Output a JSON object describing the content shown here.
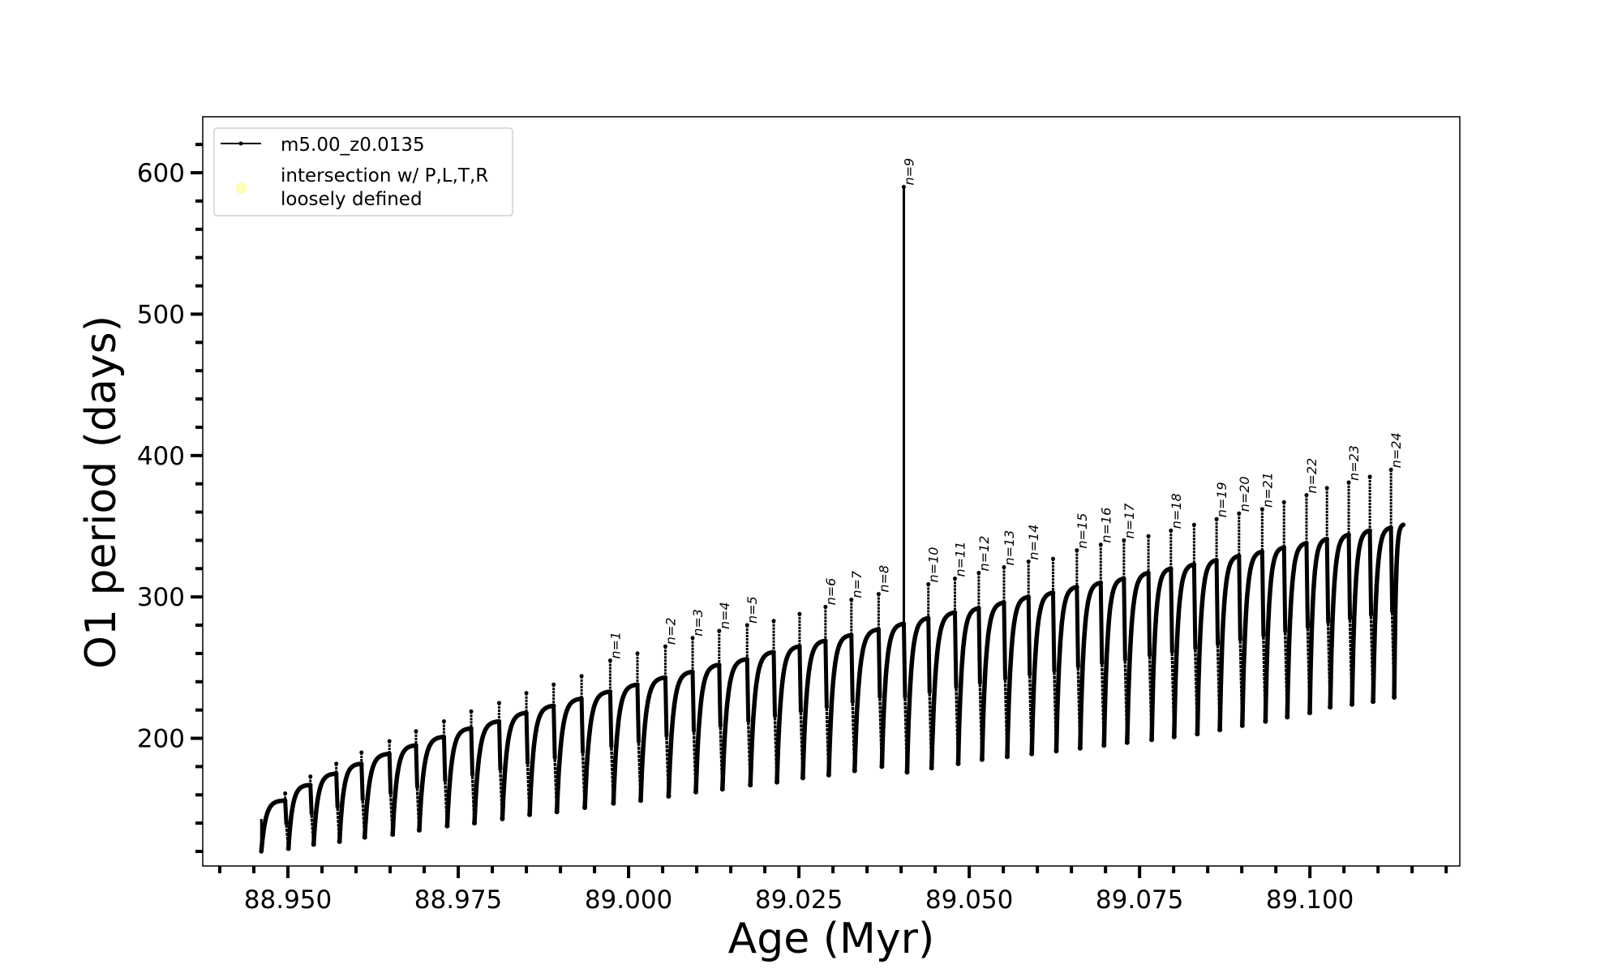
{
  "chart_data": {
    "type": "line",
    "title": "",
    "xlabel": "Age (Myr)",
    "ylabel": "O1 period (days)",
    "xlim": [
      88.9375,
      89.122
    ],
    "ylim": [
      109.7,
      639.6
    ],
    "xticks": [
      "88.950",
      "88.975",
      "89.000",
      "89.025",
      "89.050",
      "89.075",
      "89.100"
    ],
    "xtick_values": [
      88.95,
      88.975,
      89.0,
      89.025,
      89.05,
      89.075,
      89.1
    ],
    "xminor_step": 0.005,
    "yticks": [
      "200",
      "300",
      "400",
      "500",
      "600"
    ],
    "ytick_values": [
      200,
      300,
      400,
      500,
      600
    ],
    "yminor_step": 20,
    "grid": false,
    "legend": {
      "placement": "top-left",
      "entries": [
        {
          "label": "m5.00_z0.0135",
          "color": "#000000",
          "marker": "line-dot"
        },
        {
          "label_line1": "intersection w/ P,L,T,R",
          "label_line2": "loosely defined",
          "color": "#fdfdb8",
          "marker": "circle"
        }
      ]
    },
    "series_color": "#000000",
    "start": {
      "t": 88.9461,
      "P_first": 143,
      "P_min": 120
    },
    "end": {
      "t": 89.1137,
      "P": 351
    },
    "cycles": [
      {
        "t": 88.9496,
        "peak": 156,
        "spike": 161,
        "next_min": 122,
        "label": ""
      },
      {
        "t": 88.9533,
        "peak": 167,
        "spike": 173,
        "next_min": 125,
        "label": ""
      },
      {
        "t": 88.9571,
        "peak": 175,
        "spike": 182,
        "next_min": 127,
        "label": ""
      },
      {
        "t": 88.9608,
        "peak": 182,
        "spike": 190,
        "next_min": 130,
        "label": ""
      },
      {
        "t": 88.9649,
        "peak": 189,
        "spike": 198,
        "next_min": 132,
        "label": ""
      },
      {
        "t": 88.9688,
        "peak": 195,
        "spike": 205,
        "next_min": 135,
        "label": ""
      },
      {
        "t": 88.9729,
        "peak": 201,
        "spike": 212,
        "next_min": 138,
        "label": ""
      },
      {
        "t": 88.9769,
        "peak": 207,
        "spike": 219,
        "next_min": 140,
        "label": ""
      },
      {
        "t": 88.981,
        "peak": 212,
        "spike": 225,
        "next_min": 143,
        "label": ""
      },
      {
        "t": 88.985,
        "peak": 218,
        "spike": 232,
        "next_min": 146,
        "label": ""
      },
      {
        "t": 88.989,
        "peak": 223,
        "spike": 238,
        "next_min": 148,
        "label": ""
      },
      {
        "t": 88.9931,
        "peak": 228,
        "spike": 244,
        "next_min": 151,
        "label": ""
      },
      {
        "t": 88.9973,
        "peak": 233,
        "spike": 255,
        "next_min": 154,
        "label": "n=1"
      },
      {
        "t": 89.0013,
        "peak": 238,
        "spike": 260,
        "next_min": 156,
        "label": ""
      },
      {
        "t": 89.0054,
        "peak": 243,
        "spike": 265,
        "next_min": 159,
        "label": "n=2"
      },
      {
        "t": 89.0094,
        "peak": 247,
        "spike": 271,
        "next_min": 162,
        "label": "n=3"
      },
      {
        "t": 89.0133,
        "peak": 252,
        "spike": 276,
        "next_min": 164,
        "label": "n=4"
      },
      {
        "t": 89.0174,
        "peak": 256,
        "spike": 280,
        "next_min": 167,
        "label": "n=5"
      },
      {
        "t": 89.0213,
        "peak": 261,
        "spike": 283,
        "next_min": 169,
        "label": ""
      },
      {
        "t": 89.0251,
        "peak": 265,
        "spike": 288,
        "next_min": 172,
        "label": ""
      },
      {
        "t": 89.0289,
        "peak": 269,
        "spike": 293,
        "next_min": 174,
        "label": "n=6"
      },
      {
        "t": 89.0327,
        "peak": 273,
        "spike": 298,
        "next_min": 177,
        "label": "n=7"
      },
      {
        "t": 89.0367,
        "peak": 277,
        "spike": 302,
        "next_min": 180,
        "label": "n=8"
      },
      {
        "t": 89.0404,
        "peak": 281,
        "spike": 590,
        "next_min": 176,
        "label": "n=9"
      },
      {
        "t": 89.044,
        "peak": 285,
        "spike": 309,
        "next_min": 179,
        "label": "n=10"
      },
      {
        "t": 89.0479,
        "peak": 289,
        "spike": 313,
        "next_min": 182,
        "label": "n=11"
      },
      {
        "t": 89.0514,
        "peak": 292,
        "spike": 317,
        "next_min": 185,
        "label": "n=12"
      },
      {
        "t": 89.0551,
        "peak": 296,
        "spike": 321,
        "next_min": 187,
        "label": "n=13"
      },
      {
        "t": 89.0587,
        "peak": 300,
        "spike": 325,
        "next_min": 189,
        "label": "n=14"
      },
      {
        "t": 89.0623,
        "peak": 303,
        "spike": 327,
        "next_min": 191,
        "label": ""
      },
      {
        "t": 89.0658,
        "peak": 307,
        "spike": 333,
        "next_min": 193,
        "label": "n=15"
      },
      {
        "t": 89.0693,
        "peak": 310,
        "spike": 337,
        "next_min": 195,
        "label": "n=16"
      },
      {
        "t": 89.0727,
        "peak": 313,
        "spike": 340,
        "next_min": 197,
        "label": "n=17"
      },
      {
        "t": 89.0763,
        "peak": 317,
        "spike": 343,
        "next_min": 199,
        "label": ""
      },
      {
        "t": 89.0796,
        "peak": 320,
        "spike": 347,
        "next_min": 201,
        "label": "n=18"
      },
      {
        "t": 89.083,
        "peak": 323,
        "spike": 351,
        "next_min": 203,
        "label": ""
      },
      {
        "t": 89.0863,
        "peak": 326,
        "spike": 355,
        "next_min": 206,
        "label": "n=19"
      },
      {
        "t": 89.0896,
        "peak": 329,
        "spike": 359,
        "next_min": 209,
        "label": "n=20"
      },
      {
        "t": 89.093,
        "peak": 332,
        "spike": 362,
        "next_min": 212,
        "label": "n=21"
      },
      {
        "t": 89.0962,
        "peak": 335,
        "spike": 367,
        "next_min": 215,
        "label": ""
      },
      {
        "t": 89.0995,
        "peak": 338,
        "spike": 372,
        "next_min": 218,
        "label": "n=22"
      },
      {
        "t": 89.1025,
        "peak": 341,
        "spike": 377,
        "next_min": 222,
        "label": ""
      },
      {
        "t": 89.1057,
        "peak": 344,
        "spike": 381,
        "next_min": 224,
        "label": "n=23"
      },
      {
        "t": 89.1088,
        "peak": 347,
        "spike": 385,
        "next_min": 226,
        "label": ""
      },
      {
        "t": 89.1119,
        "peak": 349,
        "spike": 390,
        "next_min": 229,
        "label": "n=24"
      }
    ]
  }
}
